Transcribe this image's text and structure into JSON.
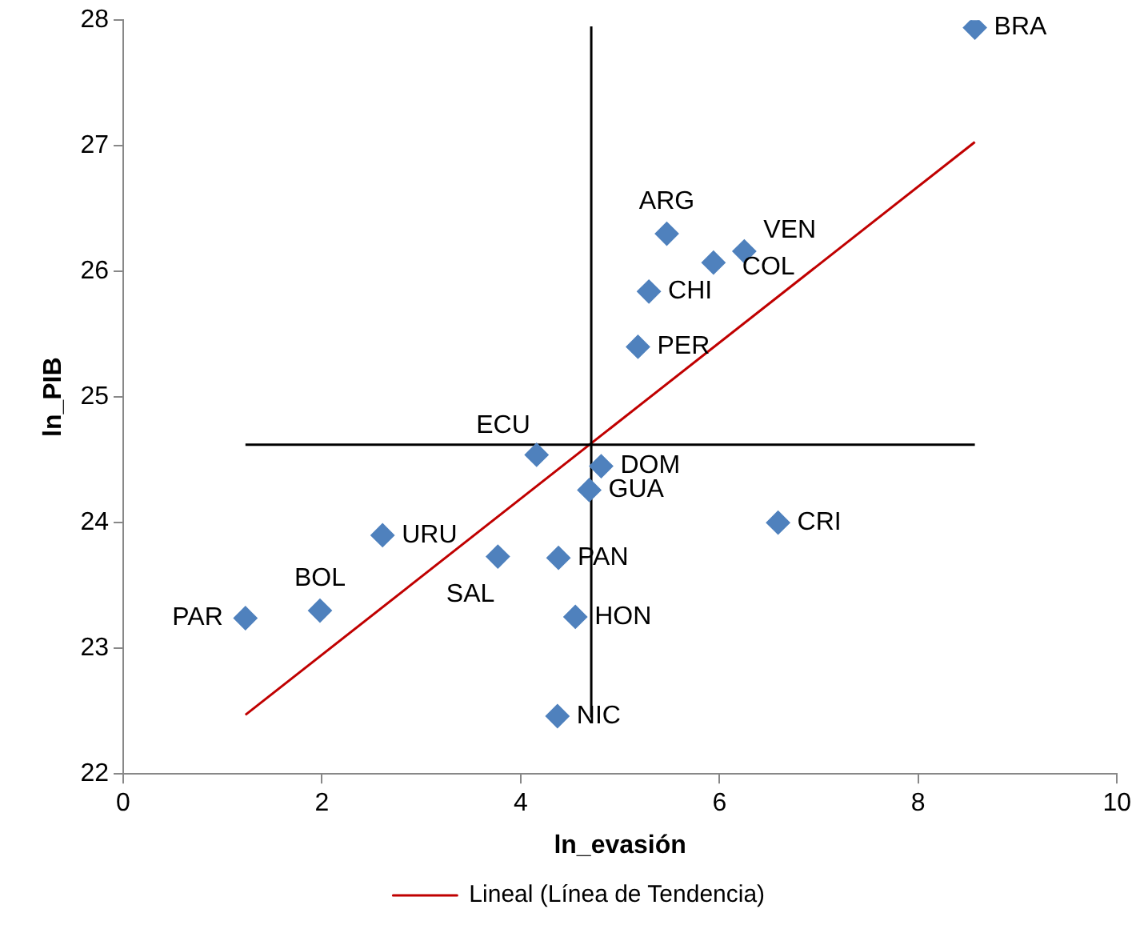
{
  "chart_data": {
    "type": "scatter",
    "xlabel": "ln_evasión",
    "ylabel": "ln_PIB",
    "xlim": [
      0,
      10
    ],
    "ylim": [
      22,
      28
    ],
    "xticks": [
      0,
      2,
      4,
      6,
      8,
      10
    ],
    "yticks": [
      22,
      23,
      24,
      25,
      26,
      27,
      28
    ],
    "grid": false,
    "legend": "bottom",
    "marker": "diamond",
    "series": [
      {
        "type": "scatter",
        "color": "#4f81bd",
        "x": [
          8.57,
          5.47,
          6.25,
          5.94,
          5.29,
          5.18,
          4.16,
          4.81,
          4.69,
          6.59,
          2.61,
          3.77,
          4.38,
          1.98,
          1.23,
          4.55,
          4.37
        ],
        "values": [
          27.94,
          26.3,
          26.16,
          26.07,
          25.84,
          25.4,
          24.54,
          24.45,
          24.26,
          24.0,
          23.9,
          23.73,
          23.72,
          23.3,
          23.24,
          23.25,
          22.46
        ]
      },
      {
        "type": "line",
        "color": "#000000",
        "marker": "none",
        "x": [
          1.23,
          8.57
        ],
        "values": [
          24.62,
          24.62
        ]
      },
      {
        "type": "line",
        "color": "#000000",
        "marker": "none",
        "x": [
          4.71,
          4.71
        ],
        "values": [
          22.45,
          27.95
        ]
      },
      {
        "type": "line",
        "name": "Lineal (Línea de Tendencia)",
        "color": "#c00000",
        "marker": "none",
        "x": [
          1.23,
          8.57
        ],
        "values": [
          22.47,
          27.03
        ]
      }
    ],
    "annotations": [
      {
        "text": "BRA",
        "x": 8.57,
        "y": 27.94
      },
      {
        "text": "ARG",
        "x": 5.47,
        "y": 26.3
      },
      {
        "text": "VEN",
        "x": 6.25,
        "y": 26.16
      },
      {
        "text": "COL",
        "x": 5.94,
        "y": 26.07
      },
      {
        "text": "CHI",
        "x": 5.29,
        "y": 25.84
      },
      {
        "text": "PER",
        "x": 5.18,
        "y": 25.4
      },
      {
        "text": "ECU",
        "x": 4.16,
        "y": 24.54
      },
      {
        "text": "DOM",
        "x": 4.81,
        "y": 24.45
      },
      {
        "text": "GUA",
        "x": 4.69,
        "y": 24.26
      },
      {
        "text": "CRI",
        "x": 6.59,
        "y": 24.0
      },
      {
        "text": "URU",
        "x": 2.61,
        "y": 23.9
      },
      {
        "text": "SAL",
        "x": 3.77,
        "y": 23.73
      },
      {
        "text": "PAN",
        "x": 4.38,
        "y": 23.72
      },
      {
        "text": "BOL",
        "x": 1.98,
        "y": 23.3
      },
      {
        "text": "PAR",
        "x": 1.23,
        "y": 23.24
      },
      {
        "text": "HON",
        "x": 4.55,
        "y": 23.25
      },
      {
        "text": "NIC",
        "x": 4.37,
        "y": 22.46
      }
    ]
  }
}
